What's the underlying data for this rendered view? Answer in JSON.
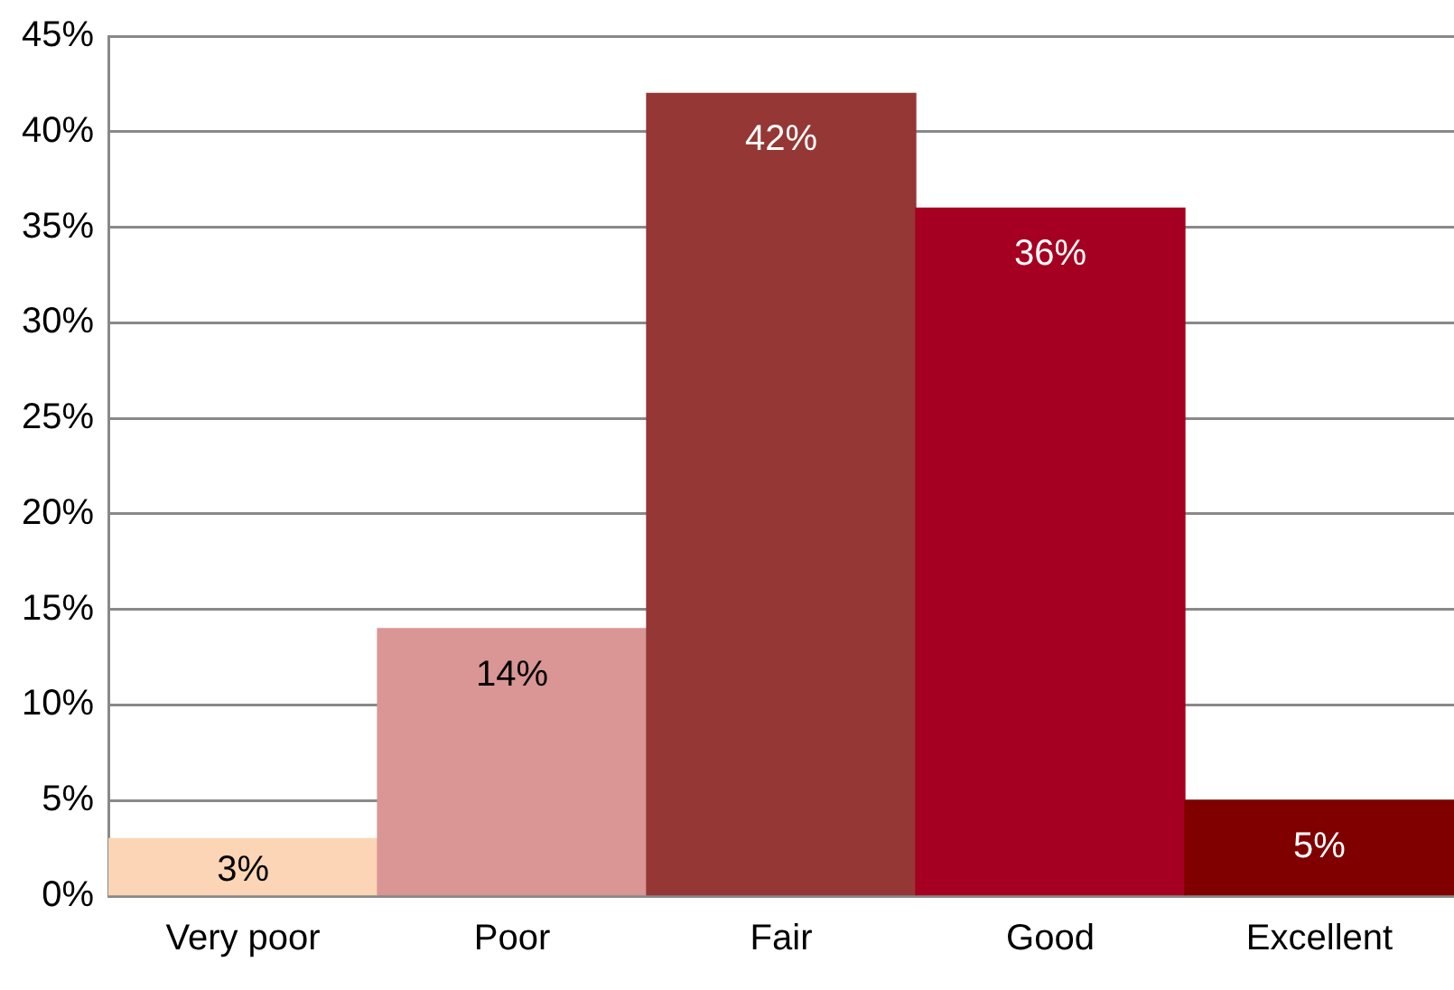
{
  "chart_data": {
    "type": "bar",
    "categories": [
      "Very poor",
      "Poor",
      "Fair",
      "Good",
      "Excellent"
    ],
    "values": [
      3,
      14,
      42,
      36,
      5
    ],
    "colors": [
      "#fbd5b5",
      "#d99694",
      "#953735",
      "#a50021",
      "#800000"
    ],
    "value_labels": [
      "3%",
      "14%",
      "42%",
      "36%",
      "5%"
    ],
    "ylim": [
      0,
      45
    ],
    "yticks": [
      {
        "value": 0,
        "label": "0%"
      },
      {
        "value": 5,
        "label": "5%"
      },
      {
        "value": 10,
        "label": "10%"
      },
      {
        "value": 15,
        "label": "15%"
      },
      {
        "value": 20,
        "label": "20%"
      },
      {
        "value": 25,
        "label": "25%"
      },
      {
        "value": 30,
        "label": "30%"
      },
      {
        "value": 35,
        "label": "35%"
      },
      {
        "value": 40,
        "label": "40%"
      },
      {
        "value": 45,
        "label": "45%"
      }
    ],
    "grid": "y"
  }
}
